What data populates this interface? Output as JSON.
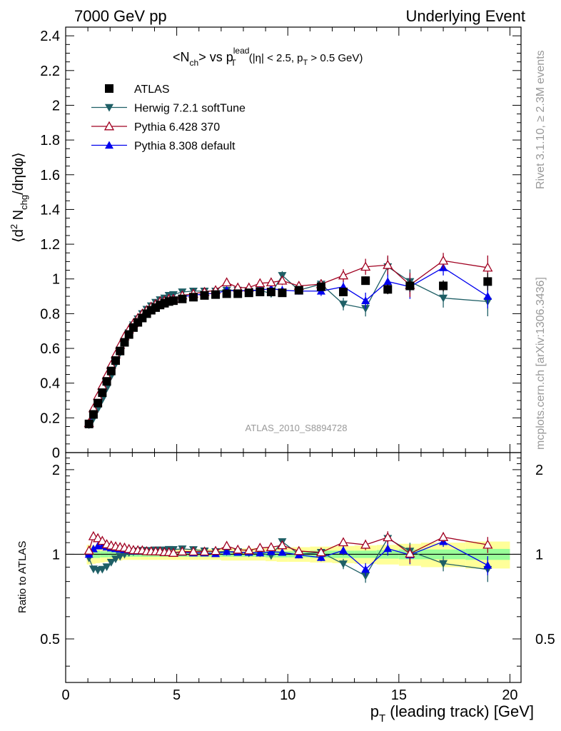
{
  "header": {
    "left": "7000 GeV pp",
    "right": "Underlying Event"
  },
  "side_labels": {
    "top": "Rivet 3.1.10, ≥ 2.3M events",
    "bottom": "mcplots.cern.ch [arXiv:1306.3436]"
  },
  "chart_data": {
    "type": "line",
    "title": {
      "base": "<N",
      "base_sub": "ch",
      "mid": "> vs p",
      "mid_sub": "T",
      "mid_sup": "lead",
      "cond_a": "(|η| < 2.5, p",
      "cond_sub": "T",
      "cond_b": " > 0.5 GeV)"
    },
    "analysis_label": "ATLAS_2010_S8894728",
    "xlabel": "p_T (leading track) [GeV]",
    "xlabel_main": "p",
    "xlabel_sub": "T",
    "xlabel_rest": " (leading track) [GeV]",
    "ylabel": "⟨d² N_chg/dηdφ⟩",
    "ylabel_a": "⟨d",
    "ylabel_sup": "2",
    "ylabel_b": " N",
    "ylabel_sub": "chg",
    "ylabel_c": "/dηdφ⟩",
    "ratio_ylabel": "Ratio to ATLAS",
    "xlim": [
      0,
      20.5
    ],
    "ylim": [
      0,
      2.45
    ],
    "ratio_ylim": [
      0.35,
      2.3
    ],
    "x_ticks": [
      "0",
      "5",
      "10",
      "15",
      "20"
    ],
    "x_tick_values": [
      0,
      5,
      10,
      15,
      20
    ],
    "y_ticks": [
      "0",
      "0.2",
      "0.4",
      "0.6",
      "0.8",
      "1",
      "1.2",
      "1.4",
      "1.6",
      "1.8",
      "2",
      "2.2",
      "2.4"
    ],
    "y_tick_values": [
      0,
      0.2,
      0.4,
      0.6,
      0.8,
      1,
      1.2,
      1.4,
      1.6,
      1.8,
      2,
      2.2,
      2.4
    ],
    "ratio_y_ticks": [
      "0.5",
      "1",
      "2"
    ],
    "ratio_y_tick_values": [
      0.5,
      1,
      2
    ],
    "legend_position": "top-left",
    "x": [
      1.05,
      1.25,
      1.45,
      1.65,
      1.85,
      2.05,
      2.25,
      2.45,
      2.65,
      2.85,
      3.05,
      3.25,
      3.45,
      3.65,
      3.85,
      4.05,
      4.25,
      4.45,
      4.65,
      4.85,
      5.25,
      5.75,
      6.25,
      6.75,
      7.25,
      7.75,
      8.25,
      8.75,
      9.25,
      9.75,
      10.5,
      11.5,
      12.5,
      13.5,
      14.5,
      15.5,
      17.0,
      19.0
    ],
    "band_edges": [
      0.95,
      1.15,
      1.35,
      1.55,
      1.75,
      1.95,
      2.15,
      2.35,
      2.55,
      2.75,
      2.95,
      3.15,
      3.35,
      3.55,
      3.75,
      3.95,
      4.15,
      4.35,
      4.55,
      4.75,
      5.0,
      5.5,
      6.0,
      6.5,
      7.0,
      7.5,
      8.0,
      8.5,
      9.0,
      9.5,
      10.0,
      11.0,
      12.0,
      13.0,
      14.0,
      15.0,
      16.0,
      18.0,
      20.0
    ],
    "series": [
      {
        "name": "ATLAS",
        "color": "#000000",
        "marker": "square",
        "values": [
          0.165,
          0.22,
          0.285,
          0.345,
          0.41,
          0.47,
          0.53,
          0.585,
          0.635,
          0.68,
          0.72,
          0.75,
          0.775,
          0.8,
          0.82,
          0.835,
          0.85,
          0.86,
          0.87,
          0.875,
          0.885,
          0.895,
          0.905,
          0.91,
          0.915,
          0.915,
          0.92,
          0.925,
          0.925,
          0.92,
          0.935,
          0.955,
          0.925,
          0.99,
          0.94,
          0.96,
          0.96,
          0.985
        ],
        "stat_err": [
          0.005,
          0.005,
          0.005,
          0.005,
          0.005,
          0.005,
          0.005,
          0.005,
          0.005,
          0.005,
          0.005,
          0.005,
          0.005,
          0.005,
          0.005,
          0.005,
          0.005,
          0.005,
          0.005,
          0.005,
          0.005,
          0.006,
          0.007,
          0.008,
          0.008,
          0.009,
          0.01,
          0.01,
          0.012,
          0.013,
          0.012,
          0.016,
          0.02,
          0.024,
          0.028,
          0.034,
          0.032,
          0.05
        ],
        "band_stat": [
          0.03,
          0.03,
          0.03,
          0.025,
          0.025,
          0.025,
          0.02,
          0.02,
          0.02,
          0.02,
          0.02,
          0.02,
          0.02,
          0.02,
          0.02,
          0.02,
          0.02,
          0.02,
          0.02,
          0.02,
          0.02,
          0.02,
          0.02,
          0.02,
          0.02,
          0.02,
          0.02,
          0.02,
          0.025,
          0.025,
          0.025,
          0.03,
          0.03,
          0.03,
          0.035,
          0.04,
          0.04,
          0.045
        ],
        "band_total": [
          0.08,
          0.075,
          0.07,
          0.065,
          0.06,
          0.055,
          0.05,
          0.05,
          0.045,
          0.045,
          0.045,
          0.045,
          0.045,
          0.045,
          0.045,
          0.045,
          0.045,
          0.045,
          0.045,
          0.045,
          0.045,
          0.045,
          0.045,
          0.045,
          0.05,
          0.05,
          0.05,
          0.05,
          0.055,
          0.06,
          0.06,
          0.065,
          0.07,
          0.075,
          0.08,
          0.09,
          0.1,
          0.11
        ]
      },
      {
        "name": "Herwig 7.2.1 softTune",
        "color": "#1f5f66",
        "marker": "triangle-down",
        "values": [
          0.16,
          0.195,
          0.25,
          0.305,
          0.37,
          0.44,
          0.51,
          0.575,
          0.635,
          0.69,
          0.735,
          0.77,
          0.8,
          0.825,
          0.845,
          0.865,
          0.88,
          0.89,
          0.905,
          0.91,
          0.925,
          0.93,
          0.93,
          0.93,
          0.935,
          0.935,
          0.93,
          0.935,
          0.915,
          1.02,
          0.935,
          0.97,
          0.855,
          0.83,
          1.07,
          0.985,
          0.89,
          0.87
        ],
        "err": [
          0.005,
          0.005,
          0.005,
          0.005,
          0.005,
          0.005,
          0.005,
          0.005,
          0.005,
          0.005,
          0.005,
          0.005,
          0.005,
          0.005,
          0.005,
          0.005,
          0.005,
          0.005,
          0.005,
          0.005,
          0.006,
          0.008,
          0.01,
          0.012,
          0.013,
          0.015,
          0.016,
          0.018,
          0.02,
          0.025,
          0.02,
          0.028,
          0.036,
          0.046,
          0.055,
          0.07,
          0.055,
          0.085
        ]
      },
      {
        "name": "Pythia 6.428 370",
        "color": "#a00020",
        "marker": "triangle-up-open",
        "values": [
          0.17,
          0.255,
          0.325,
          0.385,
          0.445,
          0.505,
          0.565,
          0.62,
          0.67,
          0.71,
          0.745,
          0.775,
          0.8,
          0.82,
          0.84,
          0.855,
          0.87,
          0.875,
          0.885,
          0.885,
          0.905,
          0.915,
          0.925,
          0.935,
          0.98,
          0.95,
          0.95,
          0.975,
          0.98,
          0.99,
          0.96,
          0.97,
          1.02,
          1.07,
          1.08,
          0.965,
          1.105,
          1.065
        ],
        "err": [
          0.005,
          0.005,
          0.005,
          0.005,
          0.005,
          0.005,
          0.005,
          0.005,
          0.005,
          0.005,
          0.005,
          0.005,
          0.005,
          0.005,
          0.005,
          0.005,
          0.005,
          0.005,
          0.005,
          0.005,
          0.006,
          0.008,
          0.01,
          0.012,
          0.013,
          0.015,
          0.016,
          0.018,
          0.02,
          0.025,
          0.02,
          0.028,
          0.036,
          0.046,
          0.055,
          0.07,
          0.045,
          0.07
        ]
      },
      {
        "name": "Pythia 8.308 default",
        "color": "#0000ee",
        "marker": "triangle-up",
        "values": [
          0.165,
          0.23,
          0.305,
          0.37,
          0.435,
          0.495,
          0.555,
          0.61,
          0.66,
          0.705,
          0.74,
          0.77,
          0.8,
          0.82,
          0.84,
          0.855,
          0.87,
          0.875,
          0.885,
          0.89,
          0.9,
          0.905,
          0.915,
          0.915,
          0.935,
          0.93,
          0.935,
          0.935,
          0.945,
          0.935,
          0.93,
          0.93,
          0.955,
          0.875,
          0.985,
          0.955,
          1.065,
          0.9
        ],
        "err": [
          0.005,
          0.005,
          0.005,
          0.005,
          0.005,
          0.005,
          0.005,
          0.005,
          0.005,
          0.005,
          0.005,
          0.005,
          0.005,
          0.005,
          0.005,
          0.005,
          0.005,
          0.005,
          0.005,
          0.005,
          0.006,
          0.008,
          0.01,
          0.012,
          0.013,
          0.015,
          0.016,
          0.018,
          0.02,
          0.025,
          0.02,
          0.028,
          0.036,
          0.046,
          0.055,
          0.07,
          0.045,
          0.07
        ]
      }
    ]
  }
}
